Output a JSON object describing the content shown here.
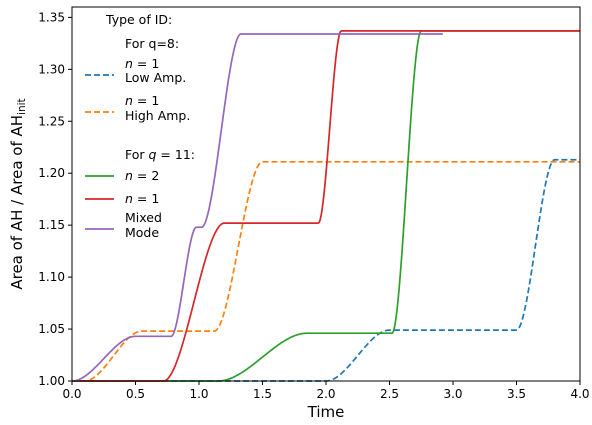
{
  "chart_data": {
    "type": "line",
    "xlabel": "Time",
    "ylabel": "Area of  AH / Area of AH",
    "ylabel_subscript": "init",
    "xlim": [
      0.0,
      4.0
    ],
    "ylim": [
      1.0,
      1.36
    ],
    "xticks": [
      0.0,
      0.5,
      1.0,
      1.5,
      2.0,
      2.5,
      3.0,
      3.5,
      4.0
    ],
    "xtick_labels": [
      "0.0",
      "0.5",
      "1.0",
      "1.5",
      "2.0",
      "2.5",
      "3.0",
      "3.5",
      "4.0"
    ],
    "yticks": [
      1.0,
      1.05,
      1.1,
      1.15,
      1.2,
      1.25,
      1.3,
      1.35
    ],
    "ytick_labels": [
      "1.00",
      "1.05",
      "1.10",
      "1.15",
      "1.20",
      "1.25",
      "1.30",
      "1.35"
    ],
    "grid": false,
    "legend": {
      "placement": "top-left",
      "title": "Type of ID:",
      "group1_header": "For q=8:",
      "group2_header_prefix": "For ",
      "group2_header_var": "q",
      "group2_header_suffix": " = 11:"
    },
    "series": [
      {
        "name": "n = 1 Low Amp.",
        "label_var": "n",
        "label_eq": " = 1",
        "label_line2": "Low Amp.",
        "group": "q=8",
        "color": "#1f77b4",
        "dashed": true,
        "steps": [
          {
            "start": 2.0,
            "end": 2.5,
            "level": 1.049
          },
          {
            "start": 3.5,
            "end": 3.8,
            "level": 1.213
          }
        ],
        "x_end": 4.0
      },
      {
        "name": "n = 1 High Amp.",
        "label_var": "n",
        "label_eq": " = 1",
        "label_line2": "High Amp.",
        "group": "q=8",
        "color": "#ff7f0e",
        "dashed": true,
        "steps": [
          {
            "start": 0.1,
            "end": 0.55,
            "level": 1.048
          },
          {
            "start": 1.12,
            "end": 1.5,
            "level": 1.211
          }
        ],
        "x_end": 4.0
      },
      {
        "name": "n = 2",
        "label_var": "n",
        "label_eq": " = 2",
        "label_line2": "",
        "group": "q=11",
        "color": "#2ca02c",
        "dashed": false,
        "steps": [
          {
            "start": 1.15,
            "end": 1.85,
            "level": 1.046
          },
          {
            "start": 2.52,
            "end": 2.75,
            "level": 1.337
          }
        ],
        "x_end": 4.0
      },
      {
        "name": "n = 1",
        "label_var": "n",
        "label_eq": " = 1",
        "label_line2": "",
        "group": "q=11",
        "color": "#d62728",
        "dashed": false,
        "steps": [
          {
            "start": 0.72,
            "end": 1.2,
            "level": 1.152
          },
          {
            "start": 1.94,
            "end": 2.12,
            "level": 1.337
          }
        ],
        "x_end": 4.0
      },
      {
        "name": "Mixed Mode",
        "label_var": "",
        "label_eq": "",
        "label_line1": "Mixed",
        "label_line2": "Mode",
        "group": "q=11",
        "color": "#9467bd",
        "dashed": false,
        "steps": [
          {
            "start": 0.0,
            "end": 0.5,
            "level": 1.043
          },
          {
            "start": 0.78,
            "end": 0.98,
            "level": 1.148
          },
          {
            "start": 1.02,
            "end": 1.33,
            "level": 1.334
          }
        ],
        "x_end": 2.92
      }
    ]
  }
}
